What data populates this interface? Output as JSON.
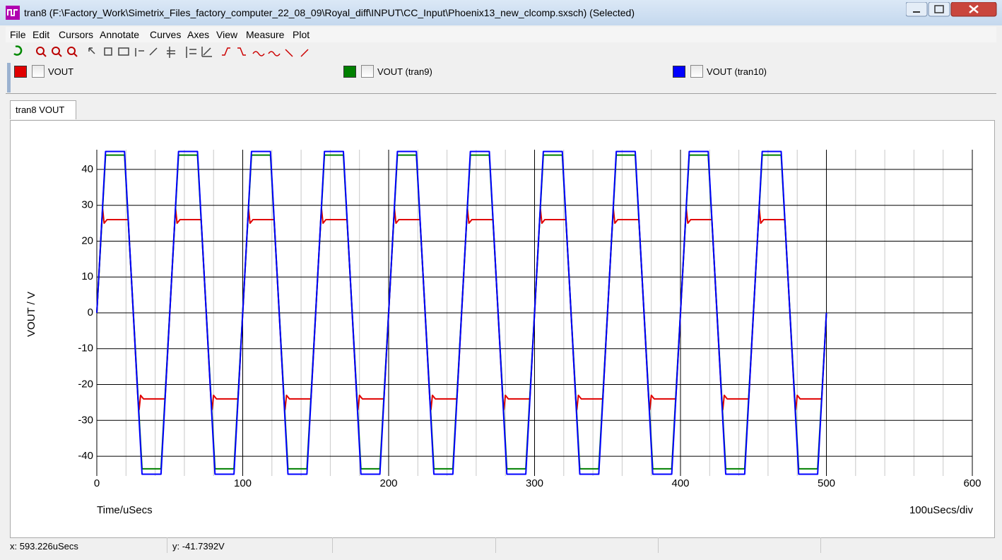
{
  "window": {
    "title": "tran8 (F:\\Factory_Work\\Simetrix_Files_factory_computer_22_08_09\\Royal_diff\\INPUT\\CC_Input\\Phoenix13_new_clcomp.sxsch) (Selected)",
    "menu": [
      "File",
      "Edit",
      "Cursors",
      "Annotate",
      "Curves",
      "Axes",
      "View",
      "Measure",
      "Plot"
    ],
    "tab": "tran8 VOUT",
    "status": {
      "x": "x: 593.226uSecs",
      "y": "y: -41.7392V"
    }
  },
  "chart_data": {
    "type": "line",
    "ylabel": "VOUT / V",
    "xlabel": "Time/uSecs",
    "xscale_note": "100uSecs/div",
    "xlim": [
      0,
      600
    ],
    "ylim": [
      -45.5,
      45.5
    ],
    "xticks": [
      0,
      100,
      200,
      300,
      400,
      500,
      600
    ],
    "xminorticks": [
      20,
      40,
      60,
      80,
      120,
      140,
      160,
      180,
      220,
      240,
      260,
      280,
      320,
      340,
      360,
      380,
      420,
      440,
      460,
      480,
      520,
      540,
      560,
      580
    ],
    "yticks": [
      -40,
      -30,
      -20,
      -10,
      0,
      10,
      20,
      30,
      40
    ],
    "grid": true,
    "series": [
      {
        "name": "VOUT",
        "color": "#e00000",
        "x": [
          0,
          3.5,
          4,
          5,
          7,
          21.5,
          28.2,
          29,
          30,
          32,
          46.8,
          53.5,
          54,
          55,
          57,
          71.5,
          78.2,
          79,
          80,
          82,
          96.8,
          103.5,
          104,
          105,
          107,
          121.5,
          128.2,
          129,
          130,
          132,
          146.8,
          153.5,
          154,
          155,
          157,
          171.5,
          178.2,
          179,
          180,
          182,
          196.8,
          203.5,
          204,
          205,
          207,
          221.5,
          228.2,
          229,
          230,
          232,
          246.8,
          253.5,
          254,
          255,
          257,
          271.5,
          278.2,
          279,
          280,
          282,
          296.8,
          303.5,
          304,
          305,
          307,
          321.5,
          328.2,
          329,
          330,
          332,
          346.8,
          353.5,
          354,
          355,
          357,
          371.5,
          378.2,
          379,
          380,
          382,
          396.8,
          403.5,
          404,
          405,
          407,
          421.5,
          428.2,
          429,
          430,
          432,
          446.8,
          453.5,
          454,
          455,
          457,
          471.5,
          478.2,
          479,
          480,
          482,
          496.8,
          500
        ],
        "values": [
          0,
          26,
          29,
          25,
          26,
          26,
          -24,
          -27,
          -23,
          -24,
          -24,
          26,
          29,
          25,
          26,
          26,
          -24,
          -27,
          -23,
          -24,
          -24,
          26,
          29,
          25,
          26,
          26,
          -24,
          -27,
          -23,
          -24,
          -24,
          26,
          29,
          25,
          26,
          26,
          -24,
          -27,
          -23,
          -24,
          -24,
          26,
          29,
          25,
          26,
          26,
          -24,
          -27,
          -23,
          -24,
          -24,
          26,
          29,
          25,
          26,
          26,
          -24,
          -27,
          -23,
          -24,
          -24,
          26,
          29,
          25,
          26,
          26,
          -24,
          -27,
          -23,
          -24,
          -24,
          26,
          29,
          25,
          26,
          26,
          -24,
          -27,
          -23,
          -24,
          -24,
          26,
          29,
          25,
          26,
          26,
          -24,
          -27,
          -23,
          -24,
          -24,
          26,
          29,
          25,
          26,
          26,
          -24,
          -27,
          -23,
          -24,
          -24,
          0
        ]
      },
      {
        "name": "VOUT (tran9)",
        "color": "#008000",
        "x": [
          0,
          6,
          19,
          31,
          44,
          56,
          69,
          81,
          94,
          106,
          119,
          131,
          144,
          156,
          169,
          181,
          194,
          206,
          219,
          231,
          244,
          256,
          269,
          281,
          294,
          306,
          319,
          331,
          344,
          356,
          369,
          381,
          394,
          406,
          419,
          431,
          444,
          456,
          469,
          481,
          494,
          500
        ],
        "values": [
          0,
          44,
          44,
          -43.5,
          -43.5,
          44,
          44,
          -43.5,
          -43.5,
          44,
          44,
          -43.5,
          -43.5,
          44,
          44,
          -43.5,
          -43.5,
          44,
          44,
          -43.5,
          -43.5,
          44,
          44,
          -43.5,
          -43.5,
          44,
          44,
          -43.5,
          -43.5,
          44,
          44,
          -43.5,
          -43.5,
          44,
          44,
          -43.5,
          -43.5,
          44,
          44,
          -43.5,
          -43.5,
          0
        ]
      },
      {
        "name": "VOUT (tran10)",
        "color": "#0000ff",
        "x": [
          0,
          6,
          19,
          31,
          44,
          56,
          69,
          81,
          94,
          106,
          119,
          131,
          144,
          156,
          169,
          181,
          194,
          206,
          219,
          231,
          244,
          256,
          269,
          281,
          294,
          306,
          319,
          331,
          344,
          356,
          369,
          381,
          394,
          406,
          419,
          431,
          444,
          456,
          469,
          481,
          494,
          500
        ],
        "values": [
          0,
          45,
          45,
          -45,
          -45,
          45,
          45,
          -45,
          -45,
          45,
          45,
          -45,
          -45,
          45,
          45,
          -45,
          -45,
          45,
          45,
          -45,
          -45,
          45,
          45,
          -45,
          -45,
          45,
          45,
          -45,
          -45,
          45,
          45,
          -45,
          -45,
          45,
          45,
          -45,
          -45,
          45,
          45,
          -45,
          -45,
          0
        ]
      }
    ]
  }
}
